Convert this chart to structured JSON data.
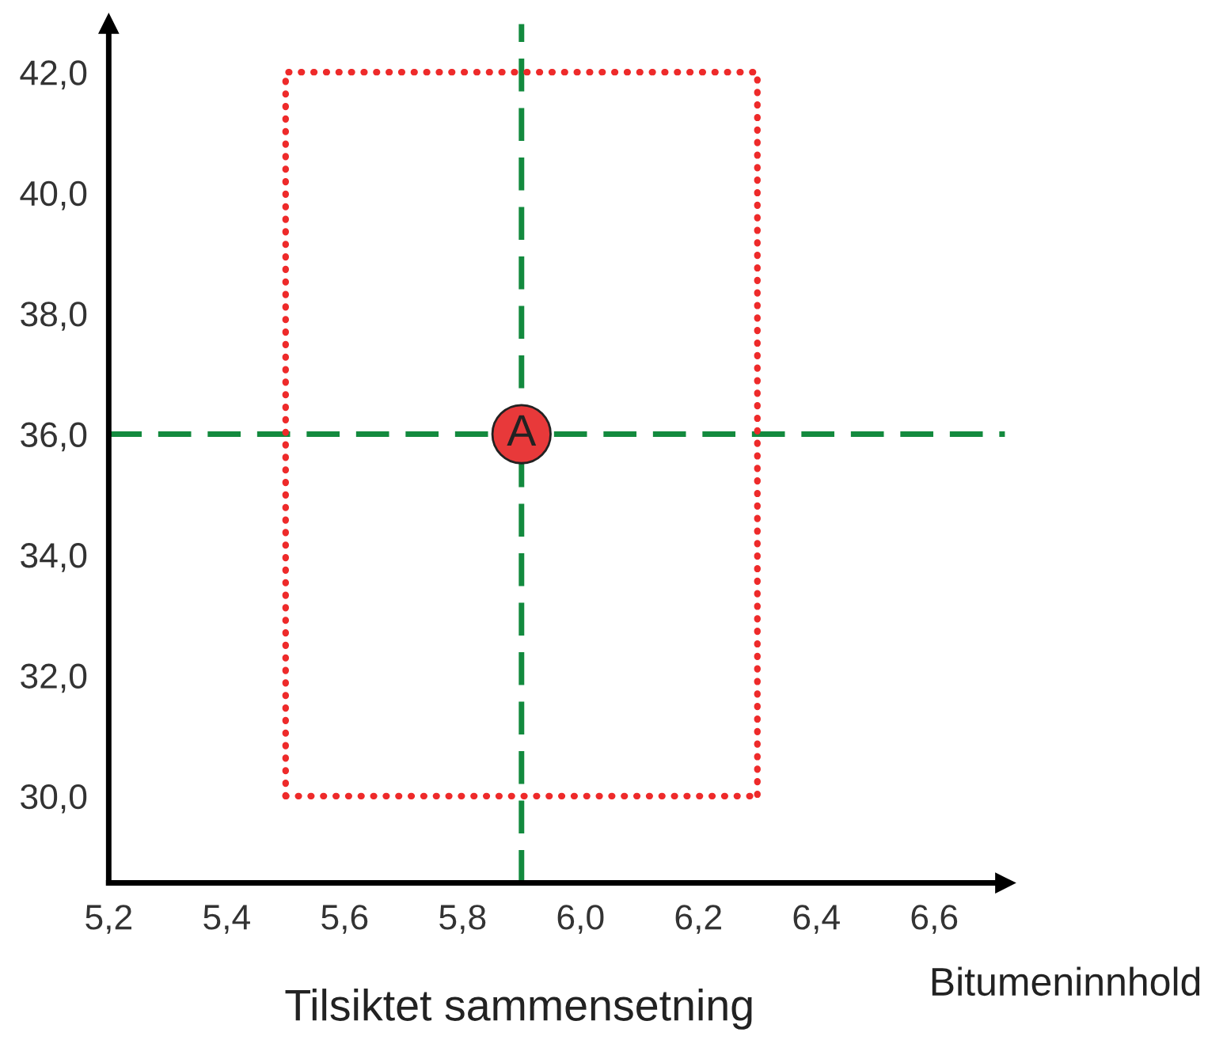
{
  "chart_data": {
    "type": "line",
    "xlabel": "Bitumeninnhold",
    "xlim": [
      5.2,
      6.72
    ],
    "ylim": [
      28.56,
      42.8
    ],
    "xticks": [
      {
        "value": 5.2,
        "label": "5,2"
      },
      {
        "value": 5.4,
        "label": "5,4"
      },
      {
        "value": 5.6,
        "label": "5,6"
      },
      {
        "value": 5.8,
        "label": "5,8"
      },
      {
        "value": 6.0,
        "label": "6,0"
      },
      {
        "value": 6.2,
        "label": "6,2"
      },
      {
        "value": 6.4,
        "label": "6,4"
      },
      {
        "value": 6.6,
        "label": "6,6"
      }
    ],
    "yticks": [
      {
        "value": 30,
        "label": "30,0"
      },
      {
        "value": 32,
        "label": "32,0"
      },
      {
        "value": 34,
        "label": "34,0"
      },
      {
        "value": 36,
        "label": "36,0"
      },
      {
        "value": 38,
        "label": "38,0"
      },
      {
        "value": 40,
        "label": "40,0"
      },
      {
        "value": 42,
        "label": "42,0"
      }
    ],
    "series": [
      {
        "color": "#ee2a2a",
        "line_style": "dotted",
        "x": [
          5.5,
          5.5,
          6.3,
          6.3
        ],
        "values": [
          30,
          42,
          42,
          30
        ]
      },
      {
        "color": "#ee2a2a",
        "line_style": "dotted",
        "x": [
          5.5,
          6.3
        ],
        "values": [
          30,
          30
        ]
      },
      {
        "type": "scatter",
        "color": "#e8393a",
        "x": [
          5.9
        ],
        "values": [
          36
        ]
      }
    ],
    "ref_lines": [
      {
        "axis": "x",
        "value": 5.9,
        "color": "#138a3e",
        "line_style": "dashed"
      },
      {
        "axis": "y",
        "value": 36,
        "color": "#138a3e",
        "line_style": "dashed"
      }
    ],
    "annotations": [
      {
        "text": "A",
        "x": 5.9,
        "y": 36
      },
      "Tilsiktet sammensetning"
    ],
    "grid": false,
    "legend": false
  }
}
